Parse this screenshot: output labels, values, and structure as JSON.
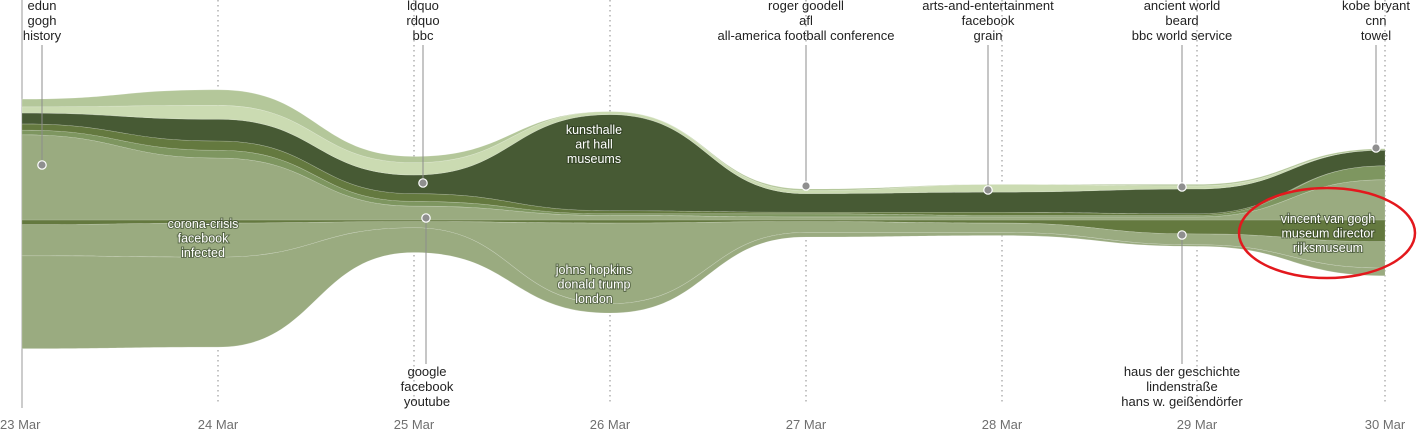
{
  "chart_data": {
    "type": "area",
    "title": "",
    "xlabel": "",
    "ylabel": "",
    "style": "streamgraph",
    "x_tick_labels": [
      "23 Mar",
      "24 Mar",
      "25 Mar",
      "26 Mar",
      "27 Mar",
      "28 Mar",
      "29 Mar",
      "30 Mar"
    ],
    "grid": "dotted vertical lines at each day",
    "colors": {
      "darkest": "#475a34",
      "dark": "#64793f",
      "mid": "#7e9660",
      "light": "#9aab80",
      "lighter": "#b4c79a",
      "lightest": "#cbdbb2",
      "highlight_ellipse": "#e3181d"
    },
    "series": [
      {
        "name": "upper-1",
        "values": [
          5,
          10,
          4,
          0,
          1,
          0,
          1,
          1
        ]
      },
      {
        "name": "upper-2",
        "values": [
          4,
          9,
          8,
          2,
          2,
          5,
          2,
          0
        ]
      },
      {
        "name": "upper-3",
        "values": [
          7,
          14,
          12,
          62,
          12,
          13,
          16,
          10
        ]
      },
      {
        "name": "upper-4",
        "values": [
          4,
          6,
          5,
          2,
          1,
          2,
          1,
          0
        ]
      },
      {
        "name": "upper-5",
        "values": [
          3,
          5,
          3,
          1,
          2,
          1,
          1,
          9
        ]
      },
      {
        "name": "upper-6",
        "values": [
          55,
          40,
          9,
          3,
          2,
          2,
          2,
          26
        ]
      },
      {
        "name": "lower-1",
        "values": [
          60,
          58,
          16,
          6,
          3,
          2,
          1,
          5
        ]
      },
      {
        "name": "lower-2",
        "values": [
          20,
          22,
          4,
          52,
          7,
          6,
          7,
          17
        ]
      },
      {
        "name": "lower-3",
        "values": [
          3,
          2,
          1,
          2,
          1,
          2,
          9,
          14
        ]
      }
    ],
    "annotations": [
      {
        "date": "23 Mar",
        "lines": [
          "edun",
          "gogh",
          "history"
        ],
        "placement": "above"
      },
      {
        "date": "25 Mar",
        "lines": [
          "ldquo",
          "rdquo",
          "bbc"
        ],
        "placement": "above"
      },
      {
        "date": "27 Mar",
        "lines": [
          "roger goodell",
          "afl",
          "all-america football conference"
        ],
        "placement": "above"
      },
      {
        "date": "28 Mar",
        "lines": [
          "arts-and-entertainment",
          "facebook",
          "grain"
        ],
        "placement": "above"
      },
      {
        "date": "29 Mar",
        "lines": [
          "ancient world",
          "beard",
          "bbc world service"
        ],
        "placement": "above"
      },
      {
        "date": "30 Mar",
        "lines": [
          "kobe bryant",
          "cnn",
          "towel"
        ],
        "placement": "above"
      },
      {
        "date": "25 Mar",
        "lines": [
          "google",
          "facebook",
          "youtube"
        ],
        "placement": "below"
      },
      {
        "date": "29 Mar",
        "lines": [
          "haus der geschichte",
          "lindenstraße",
          "hans w. geißendörfer"
        ],
        "placement": "below"
      }
    ],
    "stream_labels": [
      {
        "date": "24 Mar",
        "lines": [
          "corona-crisis",
          "facebook",
          "infected"
        ]
      },
      {
        "date": "26 Mar",
        "lines": [
          "kunsthalle",
          "art hall",
          "museums"
        ]
      },
      {
        "date": "26 Mar",
        "lines": [
          "johns hopkins",
          "donald trump",
          "london"
        ]
      },
      {
        "date": "30 Mar",
        "lines": [
          "vincent van gogh",
          "museum director",
          "rijksmuseum"
        ]
      }
    ]
  }
}
